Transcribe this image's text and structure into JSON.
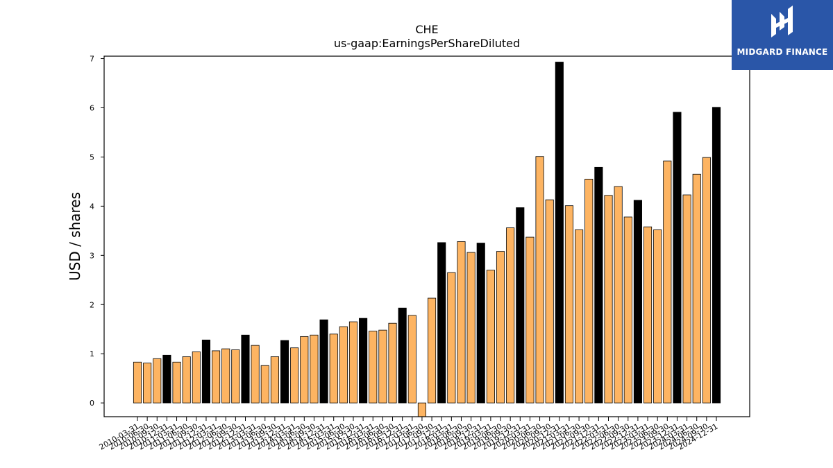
{
  "brand": {
    "name": "MIDGARD FINANCE",
    "background_color": "#2a56a8",
    "mark": "midgard-logo-mark"
  },
  "chart_data": {
    "type": "bar",
    "title": "CHE",
    "subtitle": "us-gaap:EarningsPerShareDiluted",
    "xlabel": "",
    "ylabel": "USD / shares",
    "ylim": [
      -0.28,
      7.05
    ],
    "yticks": [
      0,
      1,
      2,
      3,
      4,
      5,
      6,
      7
    ],
    "grid": false,
    "legend": "none",
    "colors": {
      "quarterly": "#fdb462",
      "annual": "#000000",
      "edge": "#000000"
    },
    "categories": [
      "2010-03-31",
      "2010-06-30",
      "2010-09-30",
      "2010-12-31",
      "2011-03-31",
      "2011-06-30",
      "2011-09-30",
      "2011-12-31",
      "2012-03-31",
      "2012-06-30",
      "2012-09-30",
      "2012-12-31",
      "2013-03-31",
      "2013-06-30",
      "2013-09-30",
      "2013-12-31",
      "2014-03-31",
      "2014-06-30",
      "2014-09-30",
      "2014-12-31",
      "2015-03-31",
      "2015-06-30",
      "2015-09-30",
      "2015-12-31",
      "2016-03-31",
      "2016-06-30",
      "2016-09-30",
      "2016-12-31",
      "2017-03-31",
      "2017-06-30",
      "2017-09-30",
      "2017-12-31",
      "2018-03-31",
      "2018-06-30",
      "2018-09-30",
      "2018-12-31",
      "2019-03-31",
      "2019-06-30",
      "2019-09-30",
      "2019-12-31",
      "2020-03-31",
      "2020-06-30",
      "2020-09-30",
      "2020-12-31",
      "2021-03-31",
      "2021-06-30",
      "2021-09-30",
      "2021-12-31",
      "2022-03-31",
      "2022-06-30",
      "2022-09-30",
      "2022-12-31",
      "2023-03-31",
      "2023-06-30",
      "2023-09-30",
      "2023-12-31",
      "2024-03-31",
      "2024-06-30",
      "2024-09-30",
      "2024-12-31"
    ],
    "tick_labels": [
      "2010-03-31",
      "2010-06-30",
      "2010-09-30",
      "2010-12-31",
      "2011-03-31",
      "2011-06-30",
      "2011-09-30",
      "2011-12-31",
      "2012-03-31",
      "2012-06-30",
      "2012-09-30",
      "2012-12-31",
      "2013-03-31",
      "2013-06-30",
      "2013-09-30",
      "2013-12-31",
      "2014-03-31",
      "2014-06-30",
      "2014-09-30",
      "2014-12-31",
      "2015-03-31",
      "2015-06-30",
      "2015-09-30",
      "2015-12-31",
      "2016-03-31",
      "2016-06-30",
      "2016-09-30",
      "2016-12-31",
      "2017-03-31",
      "2017-06-30",
      "2017-09-30",
      "2017-12-31",
      "2018-03-31",
      "2018-06-30",
      "2018-09-30",
      "2018-12-31",
      "2019-03-31",
      "2019-06-30",
      "2019-09-30",
      "2019-12-31",
      "2020-03-31",
      "2020-06-30",
      "2020-09-30",
      "2020-12-31",
      "2021-03-31",
      "2021-06-30",
      "2021-09-30",
      "2021-12-31",
      "2022-03-31",
      "2022-06-30",
      "2022-09-30",
      "2022-12-31",
      "2023-03-31",
      "2023-06-30",
      "2023-09-30",
      "2023-12-31",
      "2024-03-31",
      "2024-06-30",
      "2024-09-30",
      "2024-12-31"
    ],
    "values": [
      0.83,
      0.81,
      0.9,
      0.97,
      0.83,
      0.94,
      1.04,
      1.28,
      1.06,
      1.1,
      1.08,
      1.38,
      1.17,
      0.76,
      0.94,
      1.27,
      1.12,
      1.35,
      1.38,
      1.69,
      1.4,
      1.55,
      1.65,
      1.72,
      1.46,
      1.48,
      1.62,
      1.93,
      1.78,
      -0.28,
      2.13,
      3.26,
      2.65,
      3.28,
      3.06,
      3.25,
      2.7,
      3.08,
      3.56,
      3.97,
      3.37,
      5.01,
      4.13,
      6.93,
      4.01,
      3.52,
      4.55,
      4.79,
      4.22,
      4.4,
      3.78,
      4.12,
      3.58,
      3.52,
      4.92,
      5.91,
      4.23,
      4.65,
      4.99,
      6.01
    ],
    "period_type": [
      "Q",
      "Q",
      "Q",
      "FY",
      "Q",
      "Q",
      "Q",
      "FY",
      "Q",
      "Q",
      "Q",
      "FY",
      "Q",
      "Q",
      "Q",
      "FY",
      "Q",
      "Q",
      "Q",
      "FY",
      "Q",
      "Q",
      "Q",
      "FY",
      "Q",
      "Q",
      "Q",
      "FY",
      "Q",
      "Q",
      "Q",
      "FY",
      "Q",
      "Q",
      "Q",
      "FY",
      "Q",
      "Q",
      "Q",
      "FY",
      "Q",
      "Q",
      "Q",
      "FY",
      "Q",
      "Q",
      "Q",
      "FY",
      "Q",
      "Q",
      "Q",
      "FY",
      "Q",
      "Q",
      "Q",
      "FY",
      "Q",
      "Q",
      "Q",
      "FY"
    ]
  }
}
